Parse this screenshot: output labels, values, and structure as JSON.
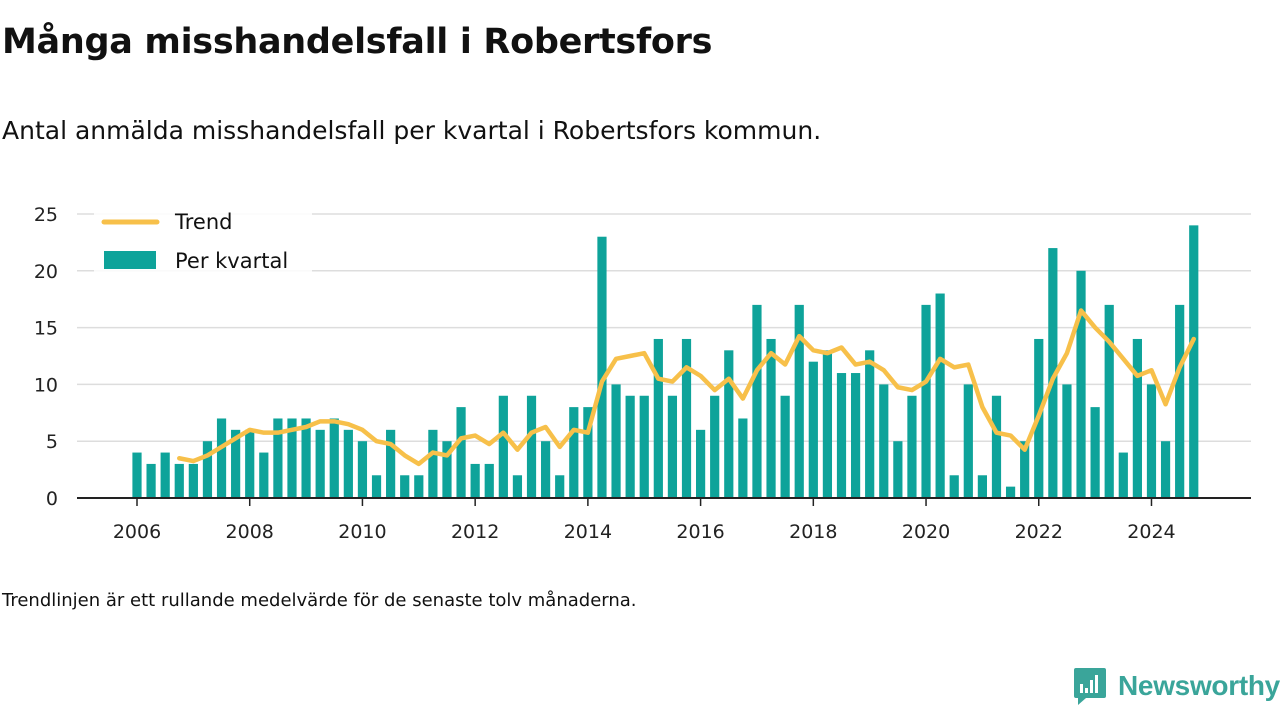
{
  "chart_data": {
    "type": "bar",
    "title": "Många misshandelsfall i Robertsfors",
    "subtitle": "Antal anmälda misshandelsfall per kvartal i Robertsfors kommun.",
    "note": "Trendlinjen är ett rullande medelvärde för de senaste tolv månaderna.",
    "x_start": "2006 Q1",
    "x_ticks": [
      "2006",
      "2008",
      "2010",
      "2012",
      "2014",
      "2016",
      "2018",
      "2020",
      "2022",
      "2024"
    ],
    "y_ticks": [
      0,
      5,
      10,
      15,
      20,
      25
    ],
    "ylim": [
      0,
      25
    ],
    "grid": true,
    "legend_position": "top-left",
    "colors": {
      "bars": "#0ea39a",
      "trend": "#f7c04a",
      "brand": "#3aa59a"
    },
    "series": [
      {
        "name": "Per kvartal",
        "type": "bar",
        "values": [
          4,
          3,
          4,
          3,
          3,
          5,
          7,
          6,
          6,
          4,
          7,
          7,
          7,
          6,
          7,
          6,
          5,
          2,
          6,
          2,
          2,
          6,
          5,
          8,
          3,
          3,
          9,
          2,
          9,
          5,
          2,
          8,
          8,
          23,
          10,
          9,
          9,
          14,
          9,
          14,
          6,
          9,
          13,
          7,
          17,
          14,
          9,
          17,
          12,
          13,
          11,
          11,
          13,
          10,
          5,
          9,
          17,
          18,
          2,
          10,
          2,
          9,
          1,
          5,
          14,
          22,
          10,
          20,
          8,
          17,
          4,
          14,
          10,
          5,
          17,
          24
        ]
      },
      {
        "name": "Trend",
        "type": "line",
        "values": [
          null,
          null,
          null,
          3.5,
          3.25,
          3.75,
          4.5,
          5.25,
          6,
          5.75,
          5.75,
          6,
          6.25,
          6.75,
          6.75,
          6.5,
          6,
          5,
          4.75,
          3.75,
          3,
          4,
          3.75,
          5.25,
          5.5,
          4.75,
          5.75,
          4.25,
          5.75,
          6.25,
          4.5,
          6,
          5.75,
          10.25,
          12.25,
          12.5,
          12.75,
          10.5,
          10.25,
          11.5,
          10.75,
          9.5,
          10.5,
          8.75,
          11.25,
          12.75,
          11.75,
          14.25,
          13,
          12.75,
          13.25,
          11.75,
          12,
          11.25,
          9.75,
          9.5,
          10.25,
          12.25,
          11.5,
          11.75,
          8,
          5.75,
          5.5,
          4.25,
          7.25,
          10.5,
          12.75,
          16.5,
          15,
          13.75,
          12.25,
          10.75,
          11.25,
          8.25,
          11.5,
          14
        ]
      }
    ]
  },
  "brand": {
    "name": "Newsworthy",
    "icon": "chart-bubble-icon"
  }
}
